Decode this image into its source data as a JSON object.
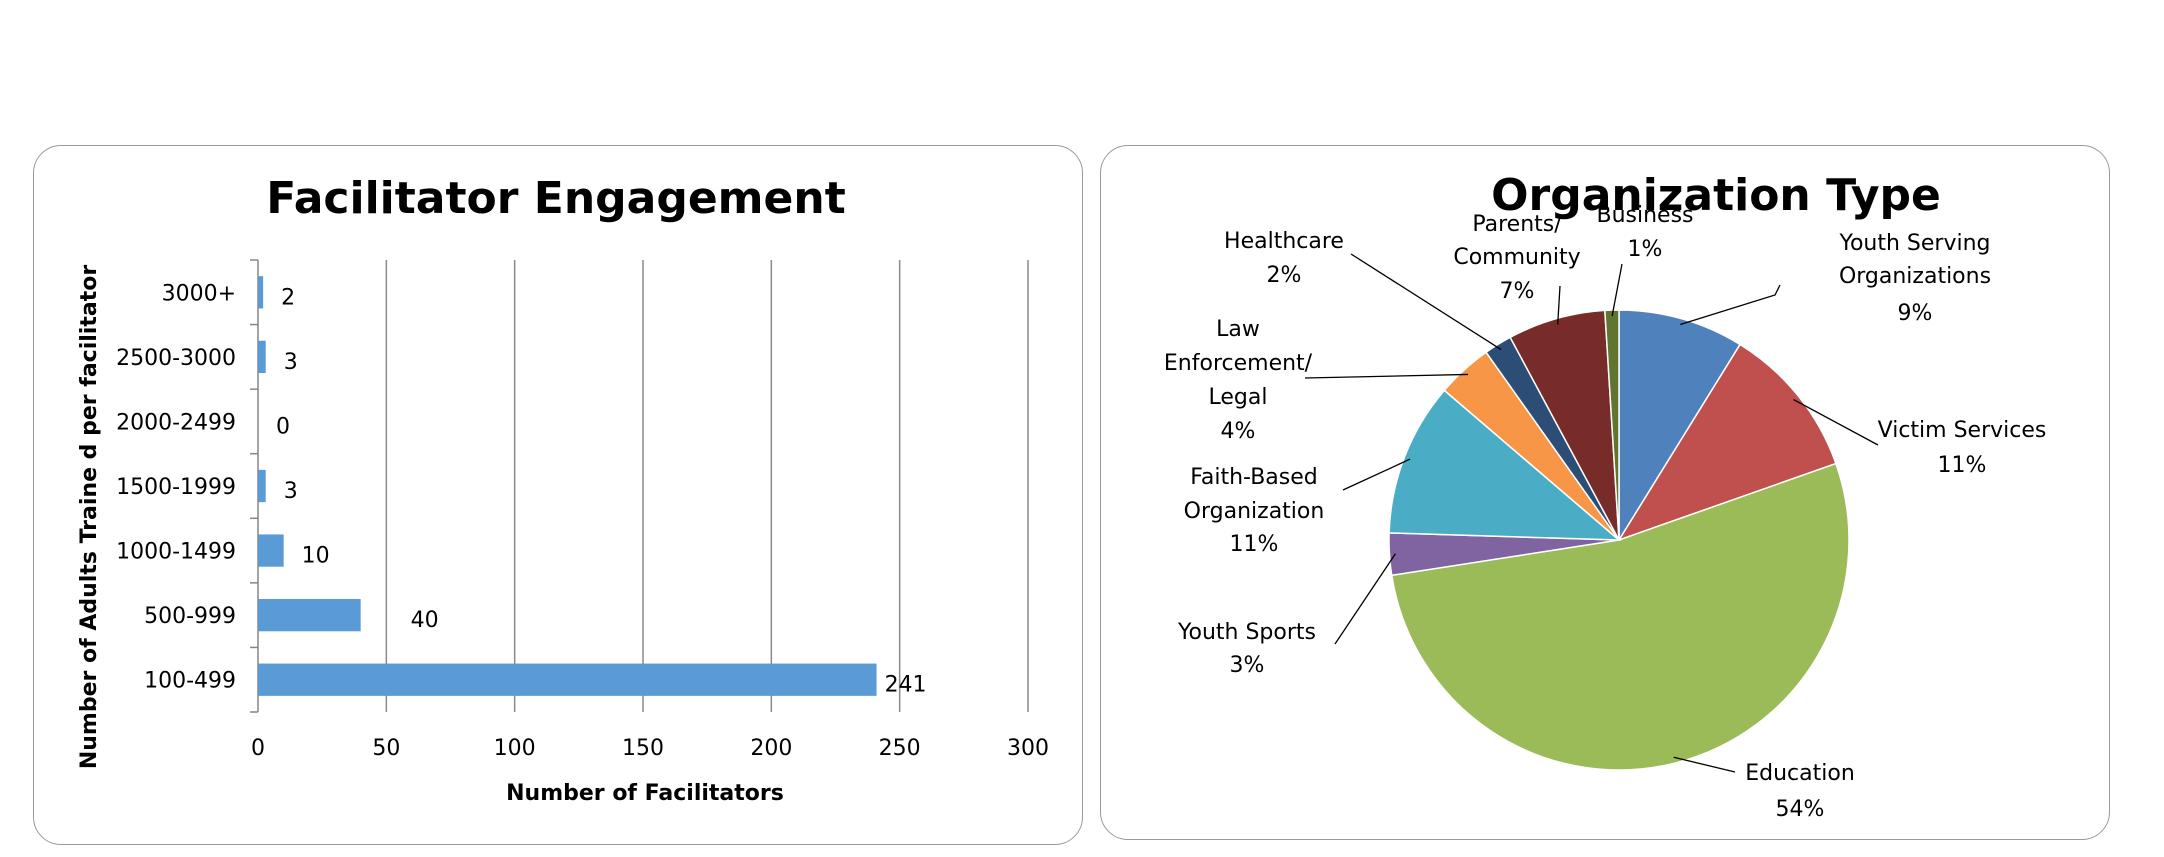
{
  "chart_data": [
    {
      "type": "bar",
      "orientation": "horizontal",
      "title": "Facilitator Engagement",
      "xlabel": "Number of Facilitators",
      "ylabel": "Number of Adults Traine d per facilitator",
      "categories": [
        "3000+",
        "2500-3000",
        "2000-2499",
        "1500-1999",
        "1000-1499",
        "500-999",
        "100-499"
      ],
      "values": [
        2,
        3,
        0,
        3,
        10,
        40,
        241
      ],
      "data_labels": [
        "2",
        "3",
        "0",
        "3",
        "10",
        "40",
        "241"
      ],
      "xlim": [
        0,
        300
      ],
      "xticks": [
        "0",
        "50",
        "100",
        "150",
        "200",
        "250",
        "300"
      ],
      "grid": "vertical",
      "color": "#5b9bd5"
    },
    {
      "type": "pie",
      "title": "Organization Type",
      "slices": [
        {
          "label": "Youth Serving Organizations",
          "pct_label": "9%",
          "value": 9,
          "color": "#4f81bd"
        },
        {
          "label": "Victim Services",
          "pct_label": "11%",
          "value": 11,
          "color": "#c0504d"
        },
        {
          "label": "Education",
          "pct_label": "54%",
          "value": 54,
          "color": "#9bbb59"
        },
        {
          "label": "Youth Sports",
          "pct_label": "3%",
          "value": 3,
          "color": "#8064a2"
        },
        {
          "label": "Faith-Based Organization",
          "pct_label": "11%",
          "value": 11,
          "color": "#4bacc6"
        },
        {
          "label": "Law Enforcement/ Legal",
          "pct_label": "4%",
          "value": 4,
          "color": "#f79646"
        },
        {
          "label": "Healthcare",
          "pct_label": "2%",
          "value": 2,
          "color": "#2c4d75"
        },
        {
          "label": "Parents/ Community",
          "pct_label": "7%",
          "value": 7,
          "color": "#772c2a"
        },
        {
          "label": "Business",
          "pct_label": "1%",
          "value": 1,
          "color": "#5f7530"
        }
      ]
    }
  ]
}
